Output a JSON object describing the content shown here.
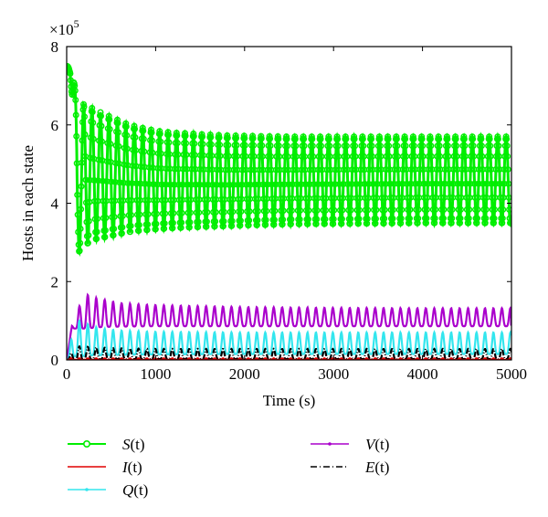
{
  "chart_data": {
    "type": "line",
    "title": "",
    "xlabel": "Time (s)",
    "ylabel": "Hosts in each state",
    "y_multiplier_label": "×10",
    "y_multiplier_exponent": "5",
    "xlim": [
      0,
      5000
    ],
    "ylim": [
      0,
      8
    ],
    "x_ticks": [
      0,
      1000,
      2000,
      3000,
      4000,
      5000
    ],
    "x_tick_labels": [
      "0",
      "1000",
      "2000",
      "3000",
      "4000",
      "5000"
    ],
    "y_ticks": [
      0,
      2,
      4,
      6,
      8
    ],
    "y_tick_labels": [
      "0",
      "2",
      "4",
      "6",
      "8"
    ],
    "grid": false,
    "legend_placement": "below plot, two columns",
    "series": [
      {
        "name": "S(t)",
        "italic": "S",
        "suffix": "(t)",
        "color": "#00ee00",
        "marker": "circle",
        "x": [
          0,
          40,
          80,
          120,
          200,
          300,
          400,
          500,
          600,
          700,
          800,
          900,
          1000,
          1200,
          1400,
          1600,
          1800,
          2000,
          2500,
          3000,
          3500,
          4000,
          4500,
          5000
        ],
        "upper": [
          7.5,
          7.5,
          7.4,
          6.0,
          6.6,
          6.4,
          6.3,
          6.2,
          6.1,
          6.0,
          5.95,
          5.9,
          5.85,
          5.8,
          5.78,
          5.75,
          5.73,
          5.72,
          5.7,
          5.7,
          5.7,
          5.7,
          5.7,
          5.7
        ],
        "lower": [
          7.5,
          7.3,
          6.0,
          2.7,
          2.9,
          3.05,
          3.1,
          3.15,
          3.2,
          3.25,
          3.28,
          3.3,
          3.32,
          3.35,
          3.37,
          3.39,
          3.4,
          3.42,
          3.45,
          3.46,
          3.47,
          3.48,
          3.48,
          3.48
        ],
        "period": 95,
        "end_value": 3.5
      },
      {
        "name": "I(t)",
        "italic": "I",
        "suffix": "(t)",
        "color": "#e00000",
        "marker": "none",
        "x": [
          0,
          5000
        ],
        "upper": [
          0.04,
          0.04
        ],
        "lower": [
          0.0,
          0.0
        ],
        "period": 95
      },
      {
        "name": "Q(t)",
        "italic": "Q",
        "suffix": "(t)",
        "color": "#33e6ee",
        "marker": "dot",
        "x": [
          0,
          100,
          200,
          300,
          400,
          600,
          1000,
          2000,
          3000,
          4000,
          5000
        ],
        "upper": [
          0.0,
          1.05,
          0.95,
          0.85,
          0.8,
          0.75,
          0.72,
          0.7,
          0.7,
          0.7,
          0.7
        ],
        "lower": [
          0.0,
          0.1,
          0.1,
          0.12,
          0.12,
          0.13,
          0.14,
          0.15,
          0.15,
          0.15,
          0.15
        ],
        "period": 95,
        "end_value": 0.65
      },
      {
        "name": "V(t)",
        "italic": "V",
        "suffix": "(t)",
        "color": "#aa00cc",
        "marker": "dot",
        "x": [
          0,
          60,
          200,
          300,
          400,
          600,
          1000,
          2000,
          3000,
          4000,
          5000
        ],
        "upper": [
          0.0,
          0.9,
          1.7,
          1.6,
          1.55,
          1.45,
          1.4,
          1.35,
          1.33,
          1.32,
          1.32
        ],
        "lower": [
          0.0,
          0.8,
          0.8,
          0.82,
          0.84,
          0.85,
          0.86,
          0.86,
          0.86,
          0.86,
          0.86
        ],
        "period": 95,
        "end_value": 0.9
      },
      {
        "name": "E(t)",
        "italic": "E",
        "suffix": "(t)",
        "color": "#000000",
        "marker": "none",
        "dash": "dashdot",
        "x": [
          0,
          100,
          500,
          1000,
          5000
        ],
        "upper": [
          0.0,
          0.35,
          0.3,
          0.28,
          0.28
        ],
        "lower": [
          0.0,
          0.0,
          0.02,
          0.02,
          0.02
        ],
        "period": 95
      }
    ]
  }
}
